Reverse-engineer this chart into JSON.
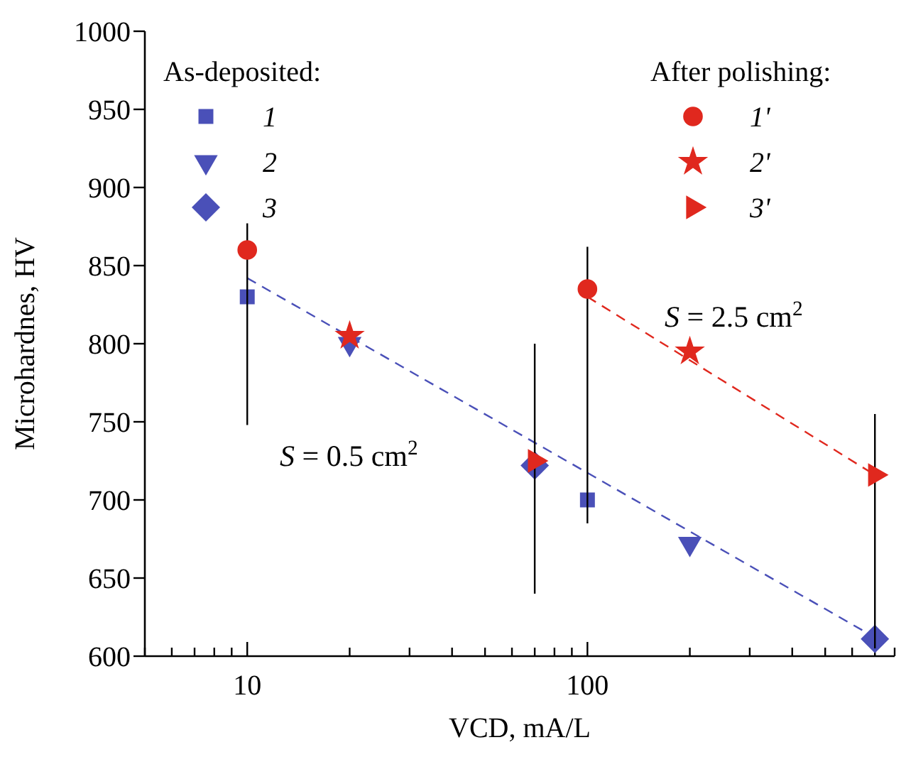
{
  "chart_data": {
    "type": "scatter",
    "xlabel": "VCD, mA/L",
    "ylabel": "Microhardnes, HV",
    "log": "x",
    "xlim": [
      5,
      800
    ],
    "ylim": [
      600,
      1000
    ],
    "xticks": [
      {
        "value": 5,
        "label": null
      },
      {
        "value": 6,
        "label": null
      },
      {
        "value": 7,
        "label": null
      },
      {
        "value": 8,
        "label": null
      },
      {
        "value": 9,
        "label": null
      },
      10,
      {
        "value": 20,
        "label": null
      },
      {
        "value": 30,
        "label": null
      },
      {
        "value": 40,
        "label": null
      },
      {
        "value": 50,
        "label": null
      },
      {
        "value": 60,
        "label": null
      },
      {
        "value": 70,
        "label": null
      },
      {
        "value": 80,
        "label": null
      },
      {
        "value": 90,
        "label": null
      },
      100,
      {
        "value": 200,
        "label": null
      },
      {
        "value": 300,
        "label": null
      },
      {
        "value": 400,
        "label": null
      },
      {
        "value": 500,
        "label": null
      },
      {
        "value": 600,
        "label": null
      },
      {
        "value": 700,
        "label": null
      },
      {
        "value": 800,
        "label": null
      }
    ],
    "yticks": [
      600,
      650,
      700,
      750,
      800,
      850,
      900,
      950,
      1000
    ],
    "grid": false,
    "legend": "top",
    "series": [
      {
        "type": "line",
        "color": "#4a50b8",
        "line_style": "dashed",
        "x": [
          10,
          700
        ],
        "values": [
          842,
          612
        ]
      },
      {
        "type": "line",
        "color": "#e0281e",
        "line_style": "dashed",
        "x": [
          100,
          700
        ],
        "values": [
          830,
          716
        ]
      },
      {
        "name": "1",
        "color": "#4a50b8",
        "marker": "square",
        "x": [
          10,
          100
        ],
        "values": [
          830,
          700
        ]
      },
      {
        "name": "2",
        "color": "#4a50b8",
        "marker": "triangle-down",
        "x": [
          20,
          200
        ],
        "values": [
          800,
          672
        ]
      },
      {
        "name": "3",
        "color": "#4a50b8",
        "marker": "diamond",
        "x": [
          70,
          700
        ],
        "values": [
          722,
          611
        ]
      },
      {
        "name": "1'",
        "color": "#e0281e",
        "marker": "circle",
        "x": [
          10,
          100
        ],
        "values": [
          860,
          835
        ],
        "errors": [
          [
            748,
            877
          ],
          [
            685,
            862
          ]
        ]
      },
      {
        "name": "2'",
        "color": "#e0281e",
        "marker": "star",
        "x": [
          20,
          200
        ],
        "values": [
          805,
          795
        ]
      },
      {
        "name": "3'",
        "color": "#e0281e",
        "marker": "triangle-right",
        "x": [
          70,
          700
        ],
        "values": [
          725,
          716
        ],
        "errors": [
          [
            640,
            800
          ],
          [
            605,
            755
          ]
        ]
      }
    ],
    "annotations": [
      "As-deposited:",
      "After polishing:",
      "S = 0.5 cm$^{2}$",
      "S = 2.5 cm$^{2}$"
    ]
  }
}
